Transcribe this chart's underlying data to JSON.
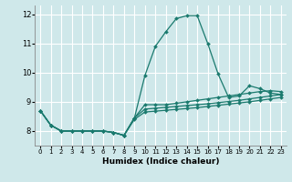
{
  "xlabel": "Humidex (Indice chaleur)",
  "xlim": [
    -0.5,
    23.5
  ],
  "ylim": [
    7.5,
    12.3
  ],
  "yticks": [
    8,
    9,
    10,
    11,
    12
  ],
  "xticks": [
    0,
    1,
    2,
    3,
    4,
    5,
    6,
    7,
    8,
    9,
    10,
    11,
    12,
    13,
    14,
    15,
    16,
    17,
    18,
    19,
    20,
    21,
    22,
    23
  ],
  "bg_color": "#cfe8ea",
  "grid_color": "#ffffff",
  "line_color": "#1a7a6e",
  "series": [
    [
      8.7,
      8.2,
      8.0,
      8.0,
      8.0,
      8.0,
      8.0,
      7.95,
      7.85,
      8.45,
      9.9,
      10.9,
      11.4,
      11.85,
      11.95,
      11.95,
      11.0,
      9.95,
      9.15,
      9.2,
      9.55,
      9.45,
      9.3,
      9.25
    ],
    [
      8.7,
      8.2,
      8.0,
      8.0,
      8.0,
      8.0,
      8.0,
      7.95,
      7.85,
      8.45,
      8.9,
      8.9,
      8.9,
      8.95,
      9.0,
      9.05,
      9.1,
      9.15,
      9.2,
      9.25,
      9.3,
      9.35,
      9.38,
      9.35
    ],
    [
      8.7,
      8.2,
      8.0,
      8.0,
      8.0,
      8.0,
      8.0,
      7.95,
      7.85,
      8.45,
      8.75,
      8.78,
      8.81,
      8.84,
      8.87,
      8.9,
      8.93,
      8.97,
      9.01,
      9.05,
      9.1,
      9.15,
      9.2,
      9.25
    ],
    [
      8.7,
      8.2,
      8.0,
      8.0,
      8.0,
      8.0,
      8.0,
      7.95,
      7.85,
      8.4,
      8.65,
      8.68,
      8.71,
      8.74,
      8.77,
      8.8,
      8.84,
      8.88,
      8.92,
      8.96,
      9.0,
      9.05,
      9.1,
      9.15
    ]
  ]
}
